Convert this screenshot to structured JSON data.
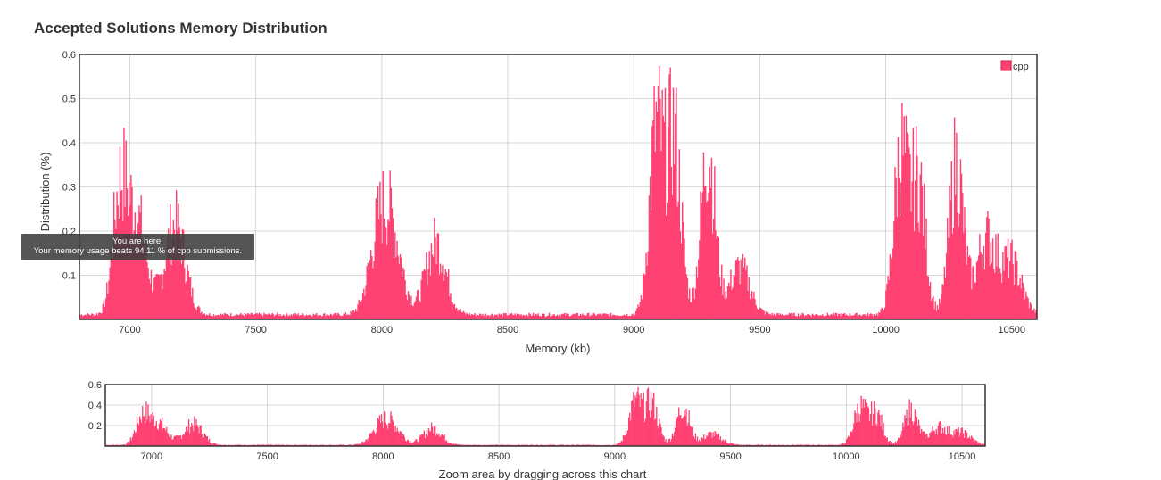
{
  "page": {
    "title": "Accepted Solutions Memory Distribution",
    "zoom_hint": "Zoom area by dragging across this chart",
    "tooltip_line1": "You are here!",
    "tooltip_line2": "Your memory usage beats 94.11 % of cpp submissions."
  },
  "colors": {
    "series": "#ff4172",
    "grid": "#cccccc",
    "frame": "#333333"
  },
  "chart_data": [
    {
      "type": "bar",
      "title": "",
      "xlabel": "Memory (kb)",
      "ylabel": "Distribution (%)",
      "xlim": [
        6800,
        10600
      ],
      "ylim": [
        0,
        0.6
      ],
      "xticks": [
        7000,
        7500,
        8000,
        8500,
        9000,
        9500,
        10000,
        10500
      ],
      "yticks": [
        0.1,
        0.2,
        0.3,
        0.4,
        0.5,
        0.6
      ],
      "grid": true,
      "legend_position": "top-right",
      "series": [
        {
          "name": "cpp",
          "color": "#ff4172",
          "peaks": [
            {
              "x": 6960,
              "y": 0.31
            },
            {
              "x": 7025,
              "y": 0.27
            },
            {
              "x": 7180,
              "y": 0.25
            },
            {
              "x": 7990,
              "y": 0.21
            },
            {
              "x": 8045,
              "y": 0.18
            },
            {
              "x": 8215,
              "y": 0.2
            },
            {
              "x": 9090,
              "y": 0.51
            },
            {
              "x": 9160,
              "y": 0.49
            },
            {
              "x": 9295,
              "y": 0.46
            },
            {
              "x": 9420,
              "y": 0.13
            },
            {
              "x": 10060,
              "y": 0.44
            },
            {
              "x": 10130,
              "y": 0.37
            },
            {
              "x": 10280,
              "y": 0.42
            },
            {
              "x": 10400,
              "y": 0.21
            },
            {
              "x": 10500,
              "y": 0.14
            }
          ]
        }
      ]
    },
    {
      "type": "bar",
      "title": "",
      "xlim": [
        6800,
        10600
      ],
      "ylim": [
        0,
        0.6
      ],
      "xticks": [
        7000,
        7500,
        8000,
        8500,
        9000,
        9500,
        10000,
        10500
      ],
      "yticks": [
        0.2,
        0.4,
        0.6
      ],
      "grid": true,
      "series": [
        {
          "name": "cpp",
          "color": "#ff4172"
        }
      ]
    }
  ]
}
